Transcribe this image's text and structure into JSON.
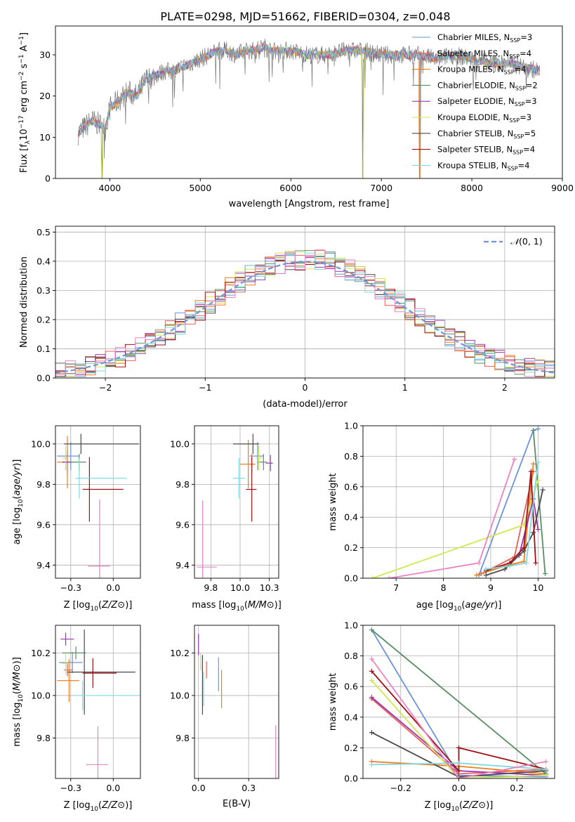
{
  "figure_title": "PLATE=0298, MJD=51662, FIBERID=0304, z=0.048",
  "colors": {
    "chabrier_miles": "#6f94d6",
    "salpeter_miles": "#e8605a",
    "kroupa_miles": "#f07e1a",
    "chabrier_elodie": "#5a8f63",
    "salpeter_elodie": "#9a35b3",
    "kroupa_elodie": "#cfe84f",
    "chabrier_stelib": "#4a4a4a",
    "salpeter_stelib": "#9e1015",
    "kroupa_stelib": "#7fd9e0",
    "pink": "#e983c2",
    "gridline": "#b0b0b0",
    "data_spectrum": "#777777"
  },
  "models": [
    {
      "key": "chabrier_miles",
      "label": "Chabrier MILES, N",
      "nssp": "=3"
    },
    {
      "key": "salpeter_miles",
      "label": "Salpeter MILES, N",
      "nssp": "=4"
    },
    {
      "key": "kroupa_miles",
      "label": "Kroupa MILES, N",
      "nssp": "=4"
    },
    {
      "key": "chabrier_elodie",
      "label": "Chabrier ELODIE, N",
      "nssp": "=2"
    },
    {
      "key": "salpeter_elodie",
      "label": "Salpeter ELODIE, N",
      "nssp": "=3"
    },
    {
      "key": "kroupa_elodie",
      "label": "Kroupa ELODIE, N",
      "nssp": "=3"
    },
    {
      "key": "chabrier_stelib",
      "label": "Chabrier STELIB, N",
      "nssp": "=5"
    },
    {
      "key": "salpeter_stelib",
      "label": "Salpeter STELIB, N",
      "nssp": "=4"
    },
    {
      "key": "kroupa_stelib",
      "label": "Kroupa STELIB, N",
      "nssp": "=4"
    }
  ],
  "chart_data": [
    {
      "id": "spectrum",
      "type": "line",
      "xlabel": "wavelength [Angstrom, rest frame]",
      "ylabel": "Flux [f",
      "xlim": [
        3400,
        9000
      ],
      "ylim": [
        0,
        37
      ],
      "xticks": [
        4000,
        5000,
        6000,
        7000,
        8000,
        9000
      ],
      "yticks": [
        0,
        10,
        20,
        30
      ],
      "legend_position": "right",
      "continuum": {
        "x": [
          3650,
          3700,
          3800,
          3900,
          3950,
          4000,
          4100,
          4200,
          4300,
          4400,
          4500,
          4600,
          4700,
          4800,
          4900,
          5000,
          5100,
          5200,
          5300,
          5400,
          5500,
          5600,
          5700,
          5800,
          5900,
          6000,
          6200,
          6400,
          6600,
          6800,
          7000,
          7200,
          7400,
          7600,
          7800,
          8000,
          8200,
          8400,
          8600,
          8750
        ],
        "y": [
          11,
          12,
          14,
          13,
          12,
          17,
          19,
          21,
          20,
          24,
          25,
          26,
          26,
          27,
          28,
          29,
          30,
          31,
          31,
          30,
          31,
          31,
          32,
          31,
          31,
          31,
          30,
          30,
          31,
          31,
          30,
          30,
          30,
          29,
          30,
          29,
          28,
          28,
          27,
          26
        ]
      },
      "dips": [
        {
          "x": 3915,
          "y": 0
        },
        {
          "x": 6795,
          "y": 0
        },
        {
          "x": 7425,
          "y": 0
        }
      ]
    },
    {
      "id": "residuals",
      "type": "line",
      "xlabel": "(data-model)/error",
      "ylabel": "Normed distribution",
      "xlim": [
        -2.5,
        2.5
      ],
      "ylim": [
        0,
        0.52
      ],
      "xticks": [
        -2,
        -1,
        0,
        1,
        2
      ],
      "yticks": [
        0.0,
        0.1,
        0.2,
        0.3,
        0.4,
        0.5
      ],
      "reference_label": "(0, 1)",
      "reference_symbol": "𝒩",
      "bin_width": 0.1
    },
    {
      "id": "age_vs_Z",
      "type": "scatter",
      "xlabel": "Z [log",
      "ylabel": "age  [log",
      "xlim": [
        -0.34,
        0.16
      ],
      "ylim": [
        9.335,
        10.09
      ],
      "xticks": [
        -0.25,
        0.0
      ],
      "yticks": [
        9.4,
        9.6,
        9.8,
        10.0
      ],
      "points": [
        {
          "model": "chabrier_miles",
          "x": -0.25,
          "y": 9.94,
          "xerr": [
            0.08,
            0.05
          ],
          "yerr": 0.07
        },
        {
          "model": "salpeter_miles",
          "x": -0.27,
          "y": 9.91,
          "xerr": [
            0.03,
            0.03
          ],
          "yerr": 0.06
        },
        {
          "model": "kroupa_miles",
          "x": -0.27,
          "y": 9.91,
          "xerr": [
            0.06,
            0.04
          ],
          "yerr": 0.13
        },
        {
          "model": "chabrier_elodie",
          "x": -0.2,
          "y": 9.91,
          "xerr": [
            0.1,
            0.04
          ],
          "yerr": 0.04
        },
        {
          "model": "salpeter_elodie",
          "x": -0.28,
          "y": 9.91,
          "xerr": [
            0.02,
            0.03
          ],
          "yerr": 0.04
        },
        {
          "model": "kroupa_elodie",
          "x": -0.28,
          "y": 9.93,
          "xerr": [
            0.02,
            0.02
          ],
          "yerr": 0.06
        },
        {
          "model": "chabrier_stelib",
          "x": -0.19,
          "y": 10.0,
          "xerr": [
            0.1,
            0.34
          ],
          "yerr": 0.05
        },
        {
          "model": "salpeter_stelib",
          "x": -0.14,
          "y": 9.775,
          "xerr": [
            0.04,
            0.2
          ],
          "yerr": 0.16
        },
        {
          "model": "kroupa_stelib",
          "x": -0.2,
          "y": 9.83,
          "xerr": [
            0.02,
            0.28
          ],
          "yerr": 0.1
        },
        {
          "model": "pink",
          "x": -0.08,
          "y": 9.395,
          "xerr": [
            0.07,
            0.06
          ],
          "yerr": 0.33
        }
      ]
    },
    {
      "id": "age_vs_mass",
      "type": "scatter",
      "xlabel": "mass [log",
      "ylabel": "",
      "xlim": [
        9.61,
        10.33
      ],
      "ylim": [
        9.335,
        10.09
      ],
      "xticks": [
        9.75,
        10.0,
        10.25
      ],
      "yticks": [
        9.4,
        9.6,
        9.8,
        10.0
      ],
      "points": [
        {
          "model": "chabrier_miles",
          "x": 10.15,
          "y": 9.94,
          "xerr": [
            0.07,
            0.05
          ],
          "yerr": 0.07
        },
        {
          "model": "salpeter_miles",
          "x": 10.1,
          "y": 9.9,
          "xerr": [
            0.02,
            0.02
          ],
          "yerr": 0.05
        },
        {
          "model": "kroupa_miles",
          "x": 10.07,
          "y": 9.9,
          "xerr": [
            0.07,
            0.06
          ],
          "yerr": 0.12
        },
        {
          "model": "chabrier_elodie",
          "x": 10.2,
          "y": 9.91,
          "xerr": [
            0.05,
            0.03
          ],
          "yerr": 0.04
        },
        {
          "model": "salpeter_elodie",
          "x": 10.26,
          "y": 9.905,
          "xerr": [
            0.04,
            0.02
          ],
          "yerr": 0.04
        },
        {
          "model": "kroupa_elodie",
          "x": 10.16,
          "y": 9.93,
          "xerr": [
            0.03,
            0.03
          ],
          "yerr": 0.06
        },
        {
          "model": "chabrier_stelib",
          "x": 10.11,
          "y": 10.0,
          "xerr": [
            0.17,
            0.05
          ],
          "yerr": 0.05
        },
        {
          "model": "salpeter_stelib",
          "x": 10.1,
          "y": 9.775,
          "xerr": [
            0.05,
            0.04
          ],
          "yerr": 0.16
        },
        {
          "model": "kroupa_stelib",
          "x": 9.99,
          "y": 9.83,
          "xerr": [
            0.05,
            0.05
          ],
          "yerr": 0.1
        },
        {
          "model": "pink",
          "x": 9.68,
          "y": 9.39,
          "xerr": [
            0.05,
            0.12
          ],
          "yerr": 0.33
        }
      ]
    },
    {
      "id": "weight_vs_age",
      "type": "line",
      "xlabel": "age  [log",
      "ylabel": "mass weight",
      "xlim": [
        6.3,
        10.35
      ],
      "ylim": [
        0,
        1.0
      ],
      "xticks": [
        7,
        8,
        9,
        10
      ],
      "yticks": [
        0.0,
        0.2,
        0.4,
        0.6,
        0.8,
        1.0
      ],
      "series": [
        {
          "model": "chabrier_miles",
          "x": [
            8.75,
            9.9,
            10.0
          ],
          "y": [
            0.02,
            0.97,
            0.98
          ]
        },
        {
          "model": "salpeter_miles",
          "x": [
            8.8,
            9.5,
            9.9
          ],
          "y": [
            0.03,
            0.14,
            0.7
          ]
        },
        {
          "model": "kroupa_miles",
          "x": [
            8.7,
            9.3,
            9.7,
            9.9
          ],
          "y": [
            0.02,
            0.08,
            0.11,
            0.75
          ]
        },
        {
          "model": "chabrier_elodie",
          "x": [
            10.15,
            9.9
          ],
          "y": [
            0.03,
            0.97
          ]
        },
        {
          "model": "salpeter_elodie",
          "x": [
            9.6,
            9.9,
            10.0
          ],
          "y": [
            0.15,
            0.52,
            0.32
          ]
        },
        {
          "model": "kroupa_elodie",
          "x": [
            6.5,
            9.7,
            10.0
          ],
          "y": [
            0.0,
            0.35,
            0.64
          ]
        },
        {
          "model": "chabrier_stelib",
          "x": [
            8.9,
            9.3,
            9.7,
            9.9,
            10.1
          ],
          "y": [
            0.02,
            0.06,
            0.18,
            0.3,
            0.58
          ]
        },
        {
          "model": "salpeter_stelib",
          "x": [
            8.9,
            9.4,
            9.7,
            9.85,
            9.95
          ],
          "y": [
            0.05,
            0.1,
            0.2,
            0.7,
            0.1
          ]
        },
        {
          "model": "kroupa_stelib",
          "x": [
            8.9,
            9.4,
            9.75,
            10.0
          ],
          "y": [
            0.06,
            0.08,
            0.1,
            0.76
          ]
        },
        {
          "model": "pink",
          "x": [
            6.85,
            8.75,
            9.5
          ],
          "y": [
            0.0,
            0.1,
            0.78
          ]
        }
      ]
    },
    {
      "id": "mass_vs_Z",
      "type": "scatter",
      "xlabel": "Z [log",
      "ylabel": "mass [log",
      "xlim": [
        -0.34,
        0.16
      ],
      "ylim": [
        9.61,
        10.33
      ],
      "xticks": [
        -0.25,
        0.0
      ],
      "yticks": [
        9.8,
        10.0,
        10.2
      ],
      "points": [
        {
          "model": "chabrier_miles",
          "x": -0.24,
          "y": 10.155,
          "xerr": [
            0.08,
            0.06
          ],
          "yerr": 0.05
        },
        {
          "model": "salpeter_miles",
          "x": -0.27,
          "y": 10.12,
          "xerr": [
            0.02,
            0.03
          ],
          "yerr": 0.03
        },
        {
          "model": "kroupa_miles",
          "x": -0.26,
          "y": 10.07,
          "xerr": [
            0.07,
            0.06
          ],
          "yerr": 0.1
        },
        {
          "model": "chabrier_elodie",
          "x": -0.22,
          "y": 10.2,
          "xerr": [
            0.08,
            0.06
          ],
          "yerr": 0.03
        },
        {
          "model": "salpeter_elodie",
          "x": -0.28,
          "y": 10.265,
          "xerr": [
            0.03,
            0.05
          ],
          "yerr": 0.03
        },
        {
          "model": "kroupa_elodie",
          "x": -0.28,
          "y": 10.15,
          "xerr": [
            0.02,
            0.02
          ],
          "yerr": 0.05
        },
        {
          "model": "chabrier_stelib",
          "x": -0.17,
          "y": 10.11,
          "xerr": [
            0.1,
            0.3
          ],
          "yerr": 0.2
        },
        {
          "model": "salpeter_stelib",
          "x": -0.12,
          "y": 10.105,
          "xerr": [
            0.06,
            0.14
          ],
          "yerr": 0.07
        },
        {
          "model": "kroupa_stelib",
          "x": -0.18,
          "y": 10.0,
          "xerr": [
            0.05,
            0.33
          ],
          "yerr": 0.07
        },
        {
          "model": "pink",
          "x": -0.09,
          "y": 9.675,
          "xerr": [
            0.07,
            0.06
          ],
          "yerr": 0.18
        }
      ]
    },
    {
      "id": "mass_vs_ebv",
      "type": "scatter",
      "xlabel": "E(B-V)",
      "ylabel": "",
      "xlim": [
        -0.02,
        0.4
      ],
      "ylim": [
        9.61,
        10.33
      ],
      "xticks": [
        0.0,
        0.25
      ],
      "yticks": [
        9.8,
        10.0,
        10.2
      ],
      "points": [
        {
          "model": "salpeter_elodie",
          "x": 0.0,
          "y": 10.24,
          "yerr": 0.05
        },
        {
          "model": "kroupa_elodie",
          "x": 0.01,
          "y": 10.16,
          "yerr": 0.04
        },
        {
          "model": "chabrier_elodie",
          "x": 0.02,
          "y": 10.15,
          "yerr": 0.04
        },
        {
          "model": "chabrier_stelib",
          "x": 0.02,
          "y": 10.05,
          "yerr": 0.14
        },
        {
          "model": "kroupa_stelib",
          "x": 0.025,
          "y": 10.03,
          "yerr": 0.08
        },
        {
          "model": "salpeter_miles",
          "x": 0.04,
          "y": 10.12,
          "yerr": 0.04
        },
        {
          "model": "chabrier_miles",
          "x": 0.1,
          "y": 10.1,
          "yerr": 0.08
        },
        {
          "model": "kroupa_miles",
          "x": 0.115,
          "y": 10.03,
          "yerr": 0.09
        },
        {
          "model": "pink",
          "x": 0.385,
          "y": 9.7,
          "yerr": 0.16
        }
      ]
    },
    {
      "id": "weight_vs_Z",
      "type": "line",
      "xlabel": "Z [log",
      "ylabel": "mass weight",
      "xlim": [
        -0.33,
        0.33
      ],
      "ylim": [
        0,
        1.0
      ],
      "xticks": [
        -0.2,
        0.0,
        0.2
      ],
      "yticks": [
        0.0,
        0.2,
        0.4,
        0.6,
        0.8,
        1.0
      ],
      "series": [
        {
          "model": "chabrier_miles",
          "x": [
            -0.3,
            0.0,
            0.3
          ],
          "y": [
            0.97,
            0.02,
            0.01
          ]
        },
        {
          "model": "salpeter_miles",
          "x": [
            -0.3,
            0.0,
            0.3
          ],
          "y": [
            0.52,
            0.03,
            0.06
          ]
        },
        {
          "model": "kroupa_miles",
          "x": [
            -0.3,
            0.0,
            0.3
          ],
          "y": [
            0.11,
            0.08,
            0.03
          ]
        },
        {
          "model": "chabrier_elodie",
          "x": [
            -0.3,
            0.3
          ],
          "y": [
            0.97,
            0.03
          ]
        },
        {
          "model": "salpeter_elodie",
          "x": [
            -0.3,
            0.0,
            0.3
          ],
          "y": [
            0.53,
            0.05,
            0.02
          ]
        },
        {
          "model": "kroupa_elodie",
          "x": [
            -0.3,
            0.0,
            0.3
          ],
          "y": [
            0.64,
            0.0,
            0.02
          ]
        },
        {
          "model": "chabrier_stelib",
          "x": [
            -0.3,
            0.0,
            0.3
          ],
          "y": [
            0.3,
            0.01,
            0.05
          ]
        },
        {
          "model": "salpeter_stelib",
          "x": [
            -0.3,
            0.0,
            0.0,
            0.3
          ],
          "y": [
            0.7,
            0.05,
            0.2,
            0.06
          ]
        },
        {
          "model": "kroupa_stelib",
          "x": [
            -0.3,
            0.0,
            0.3
          ],
          "y": [
            0.09,
            0.1,
            0.06
          ]
        },
        {
          "model": "pink",
          "x": [
            -0.3,
            0.0,
            0.3
          ],
          "y": [
            0.78,
            0.0,
            0.11
          ]
        }
      ]
    }
  ]
}
